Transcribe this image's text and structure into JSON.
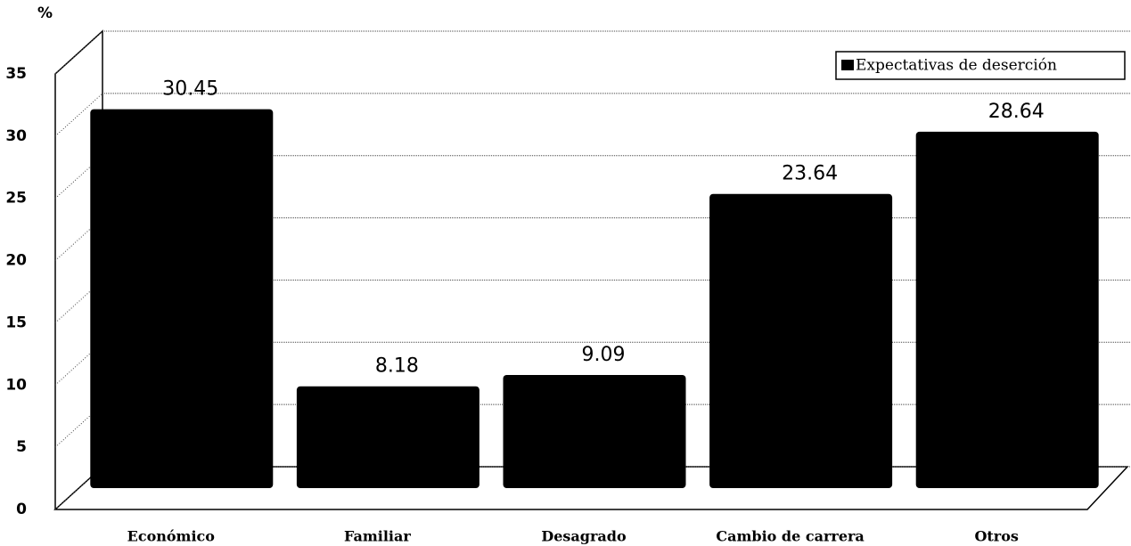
{
  "chart_data": {
    "type": "bar",
    "y_label": "%",
    "categories": [
      "Económico",
      "Familiar",
      "Desagrado",
      "Cambio de carrera",
      "Otros"
    ],
    "series": [
      {
        "name": "Expectativas de deserción",
        "color": "#000000",
        "values": [
          30.45,
          8.18,
          9.09,
          23.64,
          28.64
        ]
      }
    ],
    "ylim": [
      0,
      35
    ],
    "yticks": [
      0,
      5,
      10,
      15,
      20,
      25,
      30,
      35
    ],
    "grid": true,
    "legend": "upper right"
  }
}
